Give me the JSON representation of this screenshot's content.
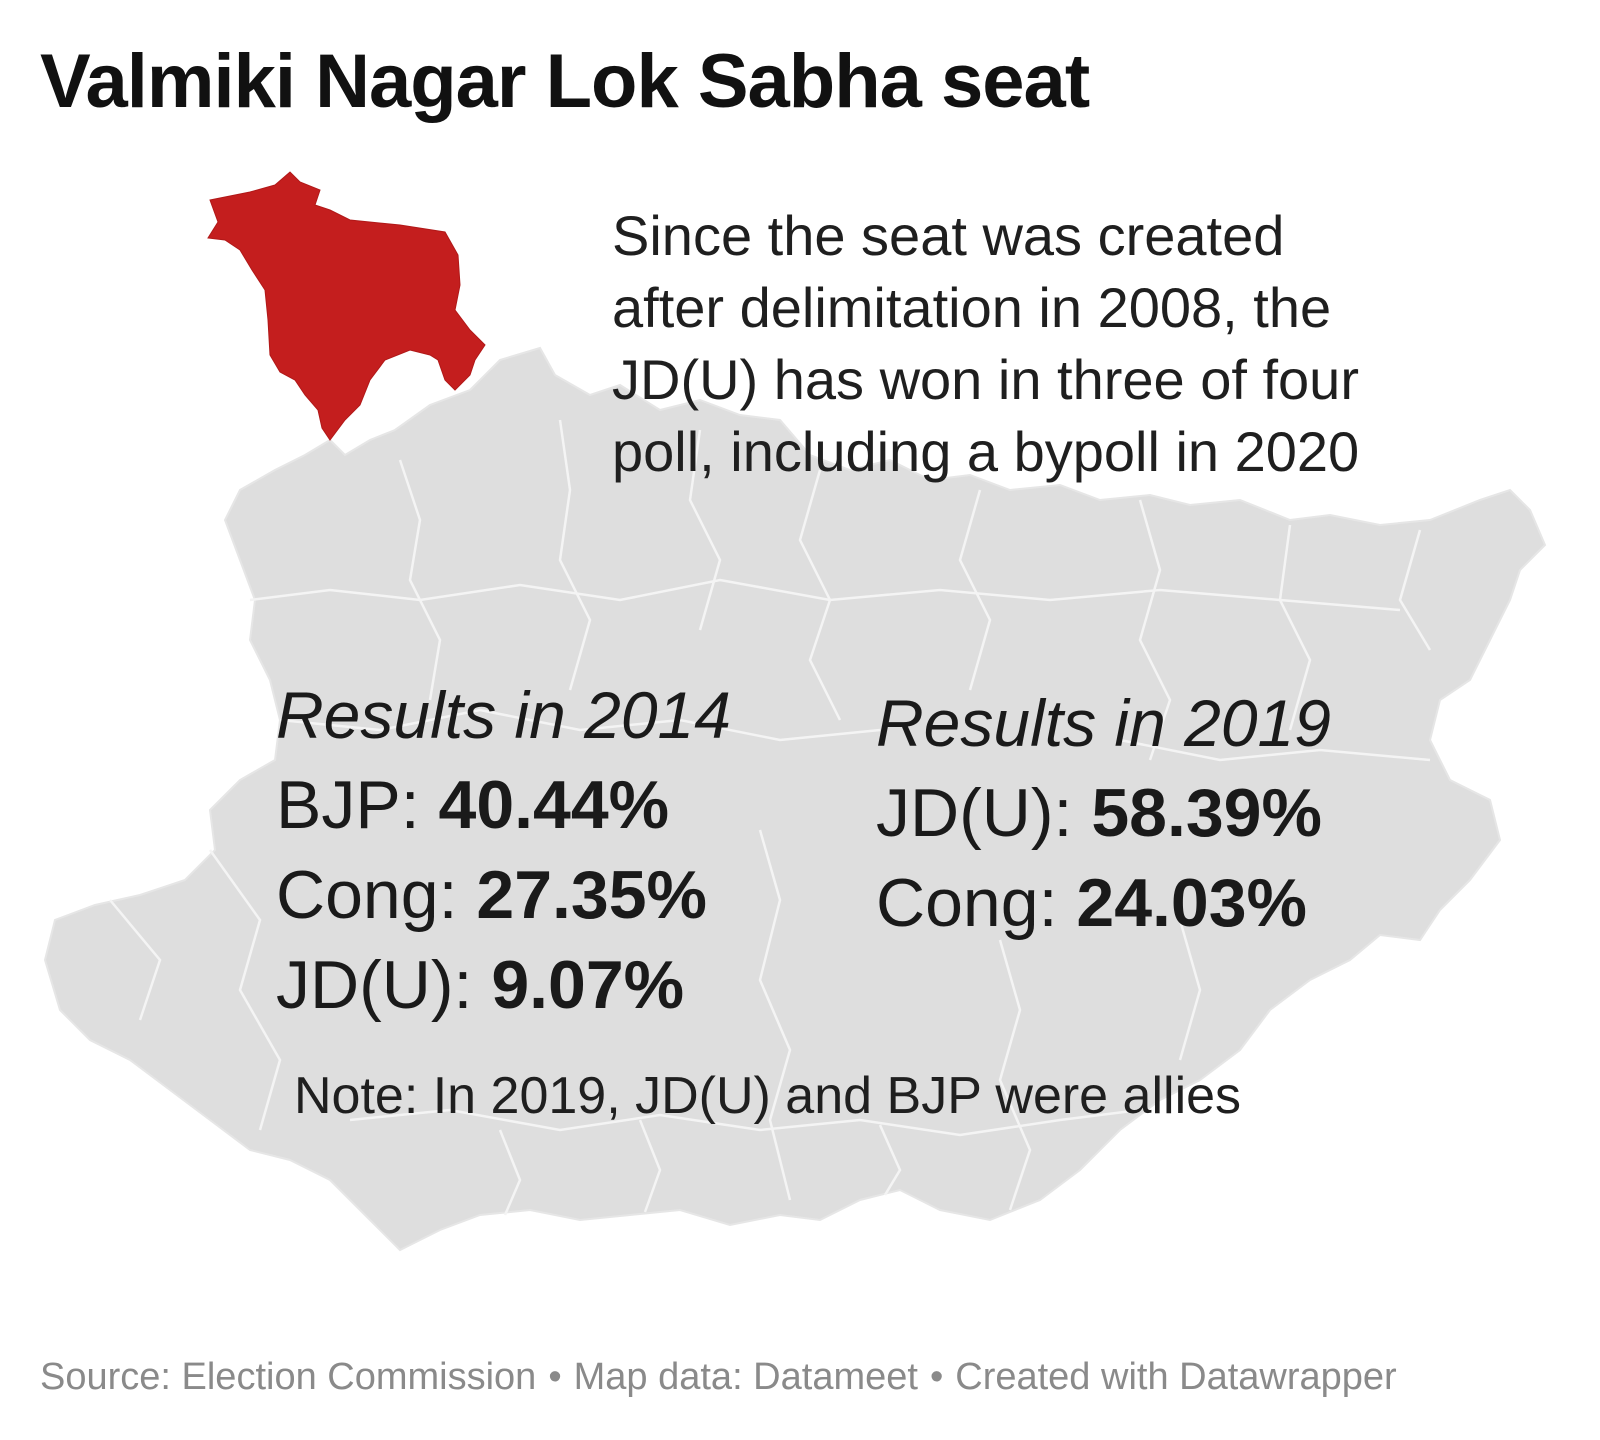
{
  "title": "Valmiki Nagar Lok Sabha seat",
  "description_lines": [
    "Since the seat was created",
    "after delimitation in 2008, the",
    "JD(U) has won in three of four",
    "poll, including a bypoll in 2020"
  ],
  "results_2014": {
    "heading": "Results in 2014",
    "rows": [
      {
        "party": "BJP:",
        "value": "40.44%"
      },
      {
        "party": "Cong:",
        "value": "27.35%"
      },
      {
        "party": "JD(U):",
        "value": "9.07%"
      }
    ]
  },
  "results_2019": {
    "heading": "Results in 2019",
    "rows": [
      {
        "party": "JD(U):",
        "value": "58.39%"
      },
      {
        "party": "Cong:",
        "value": "24.03%"
      }
    ]
  },
  "note": "Note: In 2019, JD(U) and BJP were allies",
  "footer": {
    "source": "Source: Election Commission",
    "map_data": "Map data: Datameet",
    "credit": "Created with Datawrapper",
    "separator": "•"
  },
  "colors": {
    "highlight_region": "#c41e1e",
    "state_fill": "#dedede",
    "boundary": "#f4f4f4"
  }
}
